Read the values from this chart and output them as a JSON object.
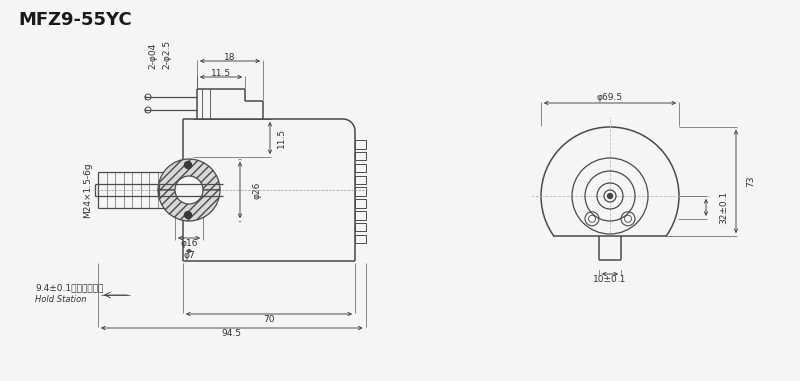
{
  "title": "MFZ9-55YC",
  "bg_color": "#f5f5f5",
  "line_color": "#4a4a4a",
  "dim_color": "#333333",
  "figsize": [
    8.0,
    3.81
  ],
  "dpi": 100,
  "annotations": {
    "model": "MFZ9-55YC",
    "dim_115_top": "11.5",
    "dim_18": "18",
    "dim_115_mid": "11.5",
    "dim_204": "2-φ04",
    "dim_2025": "2-φ2.5",
    "dim_016": "φ16",
    "dim_07": "φ7",
    "dim_026": "φ26",
    "dim_thread": "M24×1.5-6g",
    "dim_94": "9.4±0.1（吸合位置）",
    "hold_station": "Hold Station",
    "dim_70": "70",
    "dim_945": "94.5",
    "dim_10": "10±0.1",
    "dim_32": "32±0.1",
    "dim_73": "73",
    "dim_695": "φ69.5"
  }
}
